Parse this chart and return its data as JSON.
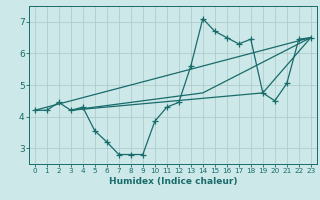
{
  "xlabel": "Humidex (Indice chaleur)",
  "xlim": [
    -0.5,
    23.5
  ],
  "ylim": [
    2.5,
    7.5
  ],
  "yticks": [
    3,
    4,
    5,
    6,
    7
  ],
  "xticks": [
    0,
    1,
    2,
    3,
    4,
    5,
    6,
    7,
    8,
    9,
    10,
    11,
    12,
    13,
    14,
    15,
    16,
    17,
    18,
    19,
    20,
    21,
    22,
    23
  ],
  "bg_color": "#cce8e8",
  "line_color": "#1a6b6b",
  "grid_color": "#b0cccc",
  "main_series": {
    "x": [
      0,
      1,
      2,
      3,
      4,
      5,
      6,
      7,
      8,
      9,
      10,
      11,
      12,
      13,
      14,
      15,
      16,
      17,
      18,
      19,
      20,
      21,
      22,
      23
    ],
    "y": [
      4.2,
      4.2,
      4.45,
      4.2,
      4.3,
      3.55,
      3.2,
      2.8,
      2.8,
      2.8,
      3.85,
      4.3,
      4.45,
      5.6,
      7.1,
      6.7,
      6.5,
      6.3,
      6.45,
      4.75,
      4.5,
      5.05,
      6.45,
      6.5
    ]
  },
  "extra_lines": [
    {
      "x": [
        0,
        23
      ],
      "y": [
        4.2,
        6.5
      ]
    },
    {
      "x": [
        3,
        14,
        23
      ],
      "y": [
        4.2,
        4.75,
        6.5
      ]
    },
    {
      "x": [
        3,
        19,
        23
      ],
      "y": [
        4.2,
        4.75,
        6.5
      ]
    }
  ]
}
